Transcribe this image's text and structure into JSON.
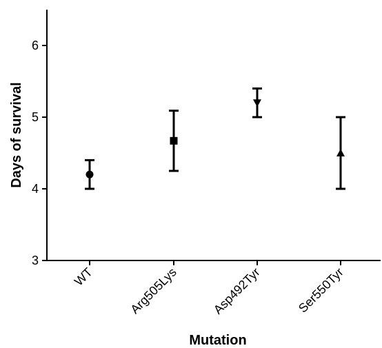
{
  "chart_data": {
    "type": "scatter",
    "title": "",
    "xlabel": "Mutation",
    "ylabel": "Days of survival",
    "categories": [
      "WT",
      "Arg505Lys",
      "Asp492Tyr",
      "Ser550Tyr"
    ],
    "series": [
      {
        "values": [
          4.2,
          4.67,
          5.2,
          4.5
        ],
        "error_low": [
          4.0,
          4.25,
          5.0,
          4.0
        ],
        "error_high": [
          4.4,
          5.09,
          5.4,
          5.0
        ],
        "markers": [
          "circle",
          "square",
          "triangle-down",
          "triangle-up"
        ]
      }
    ],
    "ylim": [
      3,
      6.5
    ],
    "yticks": [
      3,
      4,
      5,
      6
    ],
    "ytick_labels": [
      "3",
      "4",
      "5",
      "6"
    ],
    "grid": false,
    "legend": "none",
    "color": "#000000"
  }
}
